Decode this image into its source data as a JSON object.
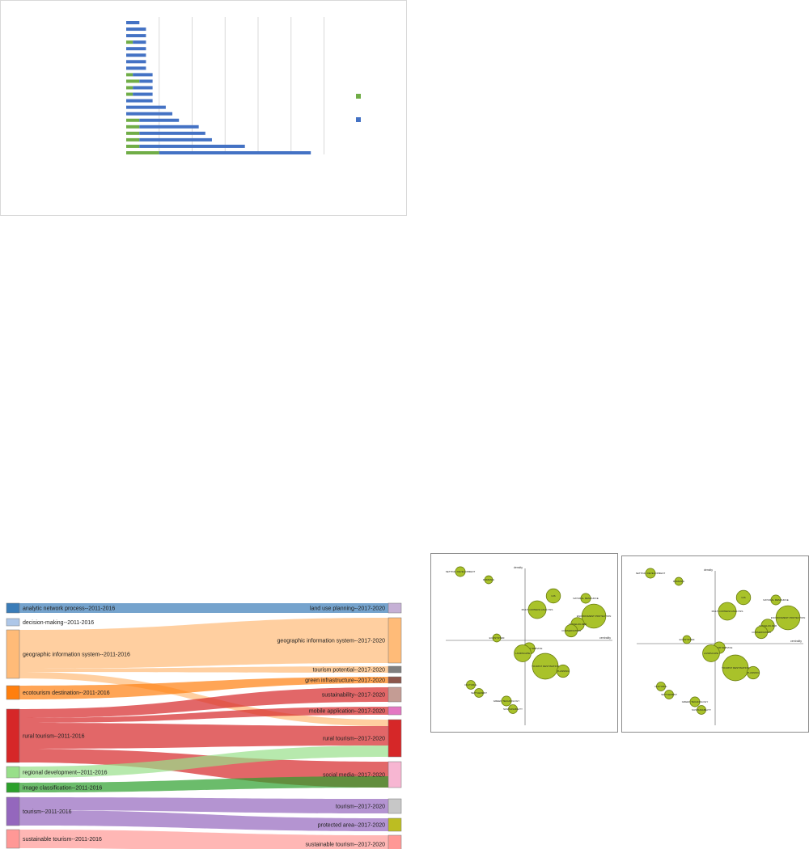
{
  "chart_data": [
    {
      "type": "bar",
      "orientation": "horizontal",
      "stacked": true,
      "categories": [
        "",
        "",
        "",
        "",
        "",
        "",
        "",
        "",
        "",
        "",
        "",
        "",
        "",
        "",
        "",
        "",
        "",
        "",
        "",
        "",
        ""
      ],
      "series": [
        {
          "color": "#70ad47",
          "values": [
            0,
            0,
            0,
            1,
            0,
            0,
            0,
            0,
            1,
            2,
            1,
            1,
            0,
            0,
            0,
            2,
            2,
            2,
            2,
            2,
            5
          ]
        },
        {
          "color": "#4472c4",
          "values": [
            2,
            3,
            3,
            2,
            3,
            3,
            3,
            3,
            3,
            2,
            3,
            3,
            4,
            6,
            7,
            6,
            9,
            10,
            11,
            16,
            23
          ]
        }
      ],
      "xlim": [
        0,
        30
      ],
      "grid": true,
      "legend": "right"
    },
    {
      "type": "sankey",
      "left_nodes": [
        {
          "label": "analytic network process--2011-2016",
          "color": "#3a7cb8"
        },
        {
          "label": "decision-making--2011-2016",
          "color": "#aec7e8"
        },
        {
          "label": "geographic information system--2011-2016",
          "color": "#ffbb78"
        },
        {
          "label": "ecotourism destination--2011-2016",
          "color": "#ff7f0e"
        },
        {
          "label": "rural tourism--2011-2016",
          "color": "#d62728"
        },
        {
          "label": "regional development--2011-2016",
          "color": "#98df8a"
        },
        {
          "label": "image classification--2011-2016",
          "color": "#2ca02c"
        },
        {
          "label": "tourism--2011-2016",
          "color": "#9467bd"
        },
        {
          "label": "sustainable tourism--2011-2016",
          "color": "#ff9896"
        }
      ],
      "right_nodes": [
        {
          "label": "land use planning--2017-2020",
          "color": "#c5b0d5"
        },
        {
          "label": "geographic information system--2017-2020",
          "color": "#ffbb78"
        },
        {
          "label": "tourism potential--2017-2020",
          "color": "#7f7f7f"
        },
        {
          "label": "green infrastructure--2017-2020",
          "color": "#8c564b"
        },
        {
          "label": "sustainability--2017-2020",
          "color": "#c49c94"
        },
        {
          "label": "mobile application--2017-2020",
          "color": "#e377c2"
        },
        {
          "label": "rural tourism--2017-2020",
          "color": "#d62728"
        },
        {
          "label": "social media--2017-2020",
          "color": "#f7b6d2"
        },
        {
          "label": "tourism--2017-2020",
          "color": "#c7c7c7"
        },
        {
          "label": "protected area--2017-2020",
          "color": "#bcbd22"
        },
        {
          "label": "sustainable tourism--2017-2020",
          "color": "#ff9896"
        }
      ],
      "flows": [
        {
          "from": 0,
          "to": 0
        },
        {
          "from": 2,
          "to": 1
        },
        {
          "from": 2,
          "to": 2
        },
        {
          "from": 2,
          "to": 6
        },
        {
          "from": 3,
          "to": 3
        },
        {
          "from": 4,
          "to": 4
        },
        {
          "from": 4,
          "to": 5
        },
        {
          "from": 4,
          "to": 6
        },
        {
          "from": 4,
          "to": 7
        },
        {
          "from": 5,
          "to": 6
        },
        {
          "from": 6,
          "to": 7
        },
        {
          "from": 7,
          "to": 8
        },
        {
          "from": 7,
          "to": 9
        },
        {
          "from": 8,
          "to": 10
        }
      ]
    },
    {
      "type": "scatter",
      "variant": "bubble",
      "bubble_color": "#a9c22a",
      "axis_labels": {
        "vertical": "density",
        "horizontal": "centrality"
      },
      "points": [
        {
          "label": "SETTING DEVELOPMENT",
          "x": -0.8,
          "y": 0.85,
          "r": 1.1
        },
        {
          "label": "ROMANIA",
          "x": -0.45,
          "y": 0.75,
          "r": 0.9
        },
        {
          "label": "GIS",
          "x": 0.35,
          "y": 0.55,
          "r": 1.6
        },
        {
          "label": "MULTI-CRITERIA ANALYSIS",
          "x": 0.15,
          "y": 0.38,
          "r": 2.0
        },
        {
          "label": "NATURAL RESOURCE",
          "x": 0.75,
          "y": 0.52,
          "r": 1.1
        },
        {
          "label": "ENVIRONMENT PROTECTION",
          "x": 0.85,
          "y": 0.3,
          "r": 2.7
        },
        {
          "label": "STAKEHOLDER",
          "x": 0.65,
          "y": 0.2,
          "r": 1.5
        },
        {
          "label": "CONSERVATION",
          "x": 0.57,
          "y": 0.12,
          "r": 1.4
        },
        {
          "label": "ECOSYSTEM",
          "x": -0.35,
          "y": 0.03,
          "r": 0.9
        },
        {
          "label": "ECOSYSTEM SERVICE",
          "x": 0.05,
          "y": -0.1,
          "r": 1.3
        },
        {
          "label": "LANDSCAPE",
          "x": -0.03,
          "y": -0.16,
          "r": 1.9
        },
        {
          "label": "TOURIST DESTINATION",
          "x": 0.25,
          "y": -0.32,
          "r": 2.9
        },
        {
          "label": "PLANNING",
          "x": 0.47,
          "y": -0.38,
          "r": 1.4
        },
        {
          "label": "CULTURAL",
          "x": -0.67,
          "y": -0.55,
          "r": 1.0
        },
        {
          "label": "SETTLEMENT",
          "x": -0.57,
          "y": -0.65,
          "r": 1.0
        },
        {
          "label": "GREEN TECHNOLOGY",
          "x": -0.23,
          "y": -0.75,
          "r": 1.1
        },
        {
          "label": "SUSTAINABILITY",
          "x": -0.15,
          "y": -0.85,
          "r": 1.0
        }
      ]
    },
    {
      "type": "scatter",
      "variant": "bubble",
      "bubble_color": "#a9c22a",
      "axis_labels": {
        "vertical": "density",
        "horizontal": "centrality"
      },
      "points": [
        {
          "label": "SETTING DEVELOPMENT",
          "x": -0.8,
          "y": 0.87,
          "r": 1.1
        },
        {
          "label": "ROMANIA",
          "x": -0.45,
          "y": 0.77,
          "r": 0.9
        },
        {
          "label": "GIS",
          "x": 0.35,
          "y": 0.57,
          "r": 1.6
        },
        {
          "label": "MULTI-CRITERIA ANALYSIS",
          "x": 0.15,
          "y": 0.4,
          "r": 2.0
        },
        {
          "label": "NATURAL RESOURCE",
          "x": 0.75,
          "y": 0.54,
          "r": 1.1
        },
        {
          "label": "ENVIRONMENT PROTECTION",
          "x": 0.9,
          "y": 0.32,
          "r": 2.7
        },
        {
          "label": "STAKEHOLDER",
          "x": 0.65,
          "y": 0.22,
          "r": 1.5
        },
        {
          "label": "CONSERVATION",
          "x": 0.57,
          "y": 0.14,
          "r": 1.4
        },
        {
          "label": "ECOSYSTEM",
          "x": -0.35,
          "y": 0.05,
          "r": 0.9
        },
        {
          "label": "ECOSYSTEM SERVICE",
          "x": 0.05,
          "y": -0.05,
          "r": 1.3
        },
        {
          "label": "LANDSCAPE",
          "x": -0.05,
          "y": -0.12,
          "r": 1.9
        },
        {
          "label": "TOURIST DESTINATION",
          "x": 0.25,
          "y": -0.3,
          "r": 2.9
        },
        {
          "label": "PLANNING",
          "x": 0.47,
          "y": -0.36,
          "r": 1.4
        },
        {
          "label": "CULTURAL",
          "x": -0.67,
          "y": -0.53,
          "r": 1.0
        },
        {
          "label": "SETTLEMENT",
          "x": -0.57,
          "y": -0.63,
          "r": 1.0
        },
        {
          "label": "GREEN TECHNOLOGY",
          "x": -0.25,
          "y": -0.72,
          "r": 1.1
        },
        {
          "label": "SUSTAINABILITY",
          "x": -0.17,
          "y": -0.82,
          "r": 1.0
        }
      ]
    }
  ]
}
